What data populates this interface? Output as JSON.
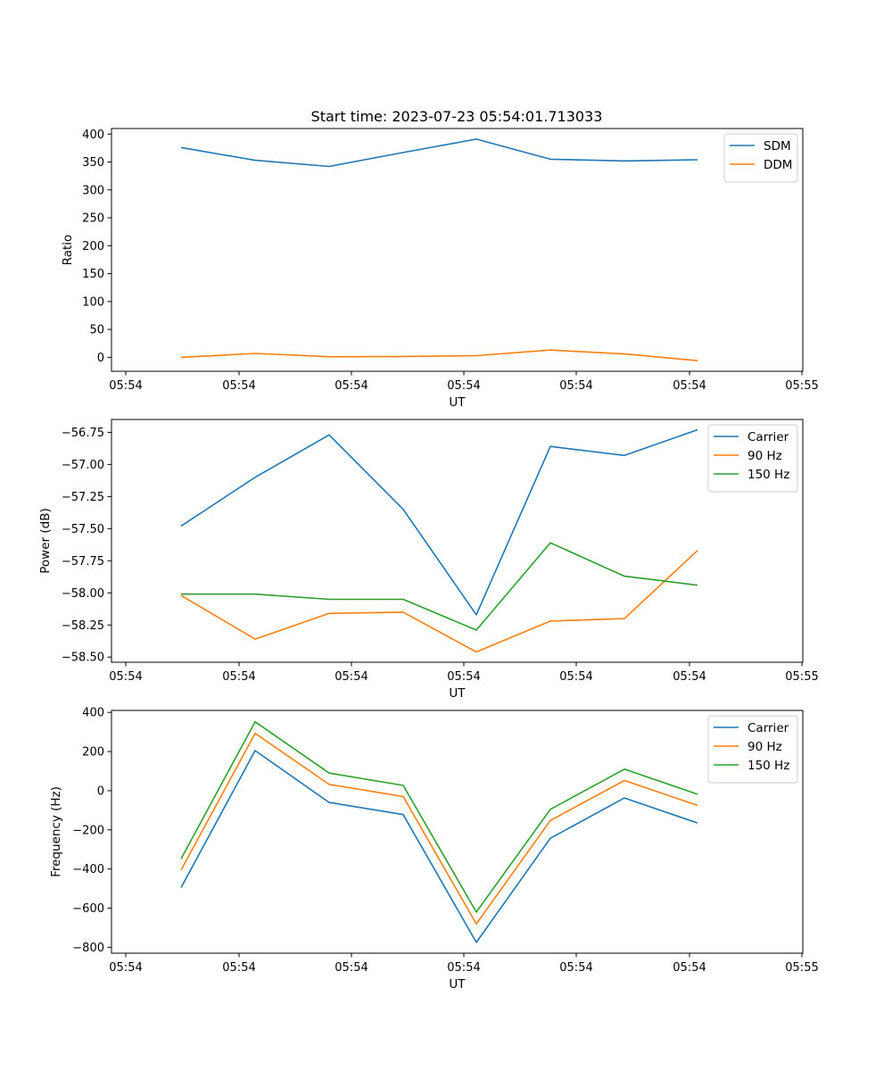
{
  "figure_title": "Start time: 2023-07-23 05:54:01.713033",
  "chart_data": [
    {
      "type": "line",
      "title": "Start time: 2023-07-23 05:54:01.713033",
      "xlabel": "UT",
      "ylabel": "Ratio",
      "x_tick_labels": [
        "05:54",
        "05:54",
        "05:54",
        "05:54",
        "05:54",
        "05:54",
        "05:54"
      ],
      "x_end_label": "05:55",
      "ylim": [
        -25,
        410
      ],
      "yticks": [
        0,
        50,
        100,
        150,
        200,
        250,
        300,
        350,
        400
      ],
      "ytick_labels": [
        "0",
        "50",
        "100",
        "150",
        "200",
        "250",
        "300",
        "350",
        "400"
      ],
      "legend_position": "top-right",
      "series": [
        {
          "name": "SDM",
          "color": "#1f77b4",
          "values": [
            376,
            353,
            342,
            367,
            391,
            355,
            352,
            354
          ]
        },
        {
          "name": "DDM",
          "color": "#ff7f0e",
          "values": [
            0,
            7,
            1,
            1.5,
            3,
            13,
            6,
            -6
          ]
        }
      ]
    },
    {
      "type": "line",
      "title": "",
      "xlabel": "UT",
      "ylabel": "Power (dB)",
      "x_tick_labels": [
        "05:54",
        "05:54",
        "05:54",
        "05:54",
        "05:54",
        "05:54",
        "05:54"
      ],
      "x_end_label": "05:55",
      "ylim": [
        -58.54,
        -56.65
      ],
      "yticks": [
        -58.5,
        -58.25,
        -58.0,
        -57.75,
        -57.5,
        -57.25,
        -57.0,
        -56.75
      ],
      "ytick_labels": [
        "−58.50",
        "−58.25",
        "−58.00",
        "−57.75",
        "−57.50",
        "−57.25",
        "−57.00",
        "−56.75"
      ],
      "legend_position": "top-right",
      "series": [
        {
          "name": "Carrier",
          "color": "#1f77b4",
          "values": [
            -57.48,
            -57.1,
            -56.77,
            -57.35,
            -58.17,
            -56.86,
            -56.93,
            -56.73
          ]
        },
        {
          "name": "90 Hz",
          "color": "#ff7f0e",
          "values": [
            -58.02,
            -58.36,
            -58.16,
            -58.15,
            -58.46,
            -58.22,
            -58.2,
            -57.67
          ]
        },
        {
          "name": "150 Hz",
          "color": "#2ca02c",
          "values": [
            -58.01,
            -58.01,
            -58.05,
            -58.05,
            -58.29,
            -57.61,
            -57.87,
            -57.94
          ]
        }
      ]
    },
    {
      "type": "line",
      "title": "",
      "xlabel": "UT",
      "ylabel": "Frequency (Hz)",
      "x_tick_labels": [
        "05:54",
        "05:54",
        "05:54",
        "05:54",
        "05:54",
        "05:54",
        "05:54"
      ],
      "x_end_label": "05:55",
      "ylim": [
        -830,
        410
      ],
      "yticks": [
        -800,
        -600,
        -400,
        -200,
        0,
        200,
        400
      ],
      "ytick_labels": [
        "−800",
        "−600",
        "−400",
        "−200",
        "0",
        "200",
        "400"
      ],
      "legend_position": "top-right",
      "series": [
        {
          "name": "Carrier",
          "color": "#1f77b4",
          "values": [
            -495,
            205,
            -60,
            -122,
            -775,
            -243,
            -37,
            -165
          ]
        },
        {
          "name": "90 Hz",
          "color": "#ff7f0e",
          "values": [
            -405,
            293,
            32,
            -30,
            -680,
            -152,
            52,
            -75
          ]
        },
        {
          "name": "150 Hz",
          "color": "#2ca02c",
          "values": [
            -348,
            352,
            90,
            27,
            -620,
            -95,
            110,
            -18
          ]
        }
      ]
    }
  ]
}
